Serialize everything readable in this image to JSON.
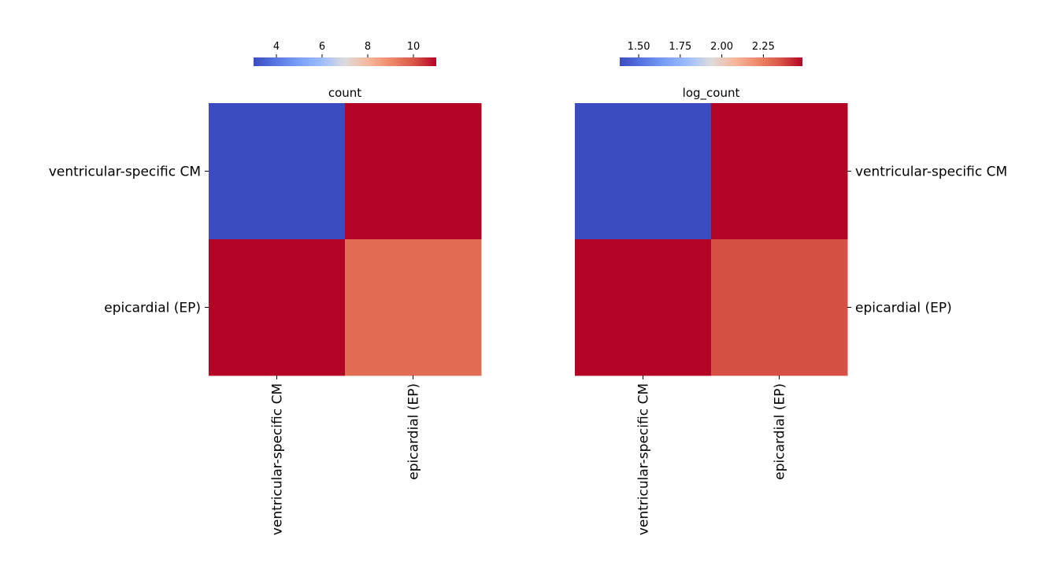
{
  "chart_data": [
    {
      "type": "heatmap",
      "title": "count",
      "row_labels": [
        "ventricular-specific CM",
        "epicardial (EP)"
      ],
      "col_labels": [
        "ventricular-specific CM",
        "epicardial (EP)"
      ],
      "values": [
        [
          3,
          11
        ],
        [
          11,
          9.6
        ]
      ],
      "colormap": "coolwarm",
      "colorbar": {
        "min": 3,
        "max": 11,
        "ticks": [
          4,
          6,
          8,
          10
        ],
        "tick_labels": [
          "4",
          "6",
          "8",
          "10"
        ],
        "position": "top"
      },
      "row_label_side": "left"
    },
    {
      "type": "heatmap",
      "title": "log_count",
      "row_labels": [
        "ventricular-specific CM",
        "epicardial (EP)"
      ],
      "col_labels": [
        "ventricular-specific CM",
        "epicardial (EP)"
      ],
      "values": [
        [
          1.386,
          2.485
        ],
        [
          2.485,
          2.36
        ]
      ],
      "colormap": "coolwarm",
      "colorbar": {
        "min": 1.386,
        "max": 2.485,
        "ticks": [
          1.5,
          1.75,
          2.0,
          2.25
        ],
        "tick_labels": [
          "1.50",
          "1.75",
          "2.00",
          "2.25"
        ],
        "position": "top"
      },
      "row_label_side": "right"
    }
  ]
}
